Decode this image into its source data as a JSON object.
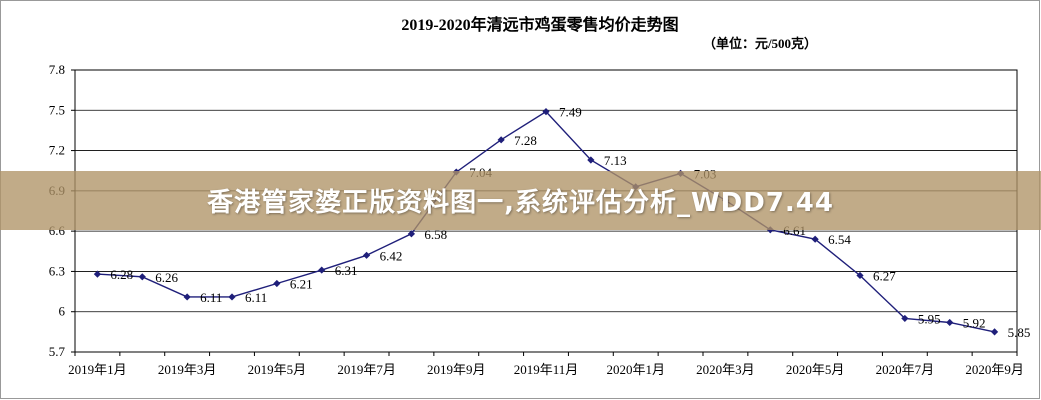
{
  "overlay": {
    "banner_text": "香港管家婆正版资料图一,系统评估分析_WDD7.44"
  },
  "chart_data": {
    "type": "line",
    "title": "2019-2020年清远市鸡蛋零售均价走势图",
    "unit_note": "（单位：元/500克）",
    "ylim": [
      5.7,
      7.8
    ],
    "yticks": [
      "7.8",
      "7.5",
      "7.2",
      "6.9",
      "6.6",
      "6.3",
      "6",
      "5.7"
    ],
    "ytick_values": [
      7.8,
      7.5,
      7.2,
      6.9,
      6.6,
      6.3,
      6.0,
      5.7
    ],
    "x_labels": [
      "2019年1月",
      "2019年3月",
      "2019年5月",
      "2019年7月",
      "2019年9月",
      "2019年11月",
      "2020年1月",
      "2020年3月",
      "2020年5月",
      "2020年7月",
      "2020年9月"
    ],
    "grid": true,
    "line_color": "#1f1f7a",
    "values": [
      6.28,
      6.26,
      6.11,
      6.11,
      6.21,
      6.31,
      6.42,
      6.58,
      7.04,
      7.28,
      7.49,
      7.13,
      6.93,
      7.03,
      6.83,
      6.61,
      6.54,
      6.27,
      5.95,
      5.92,
      5.85
    ],
    "data_labels": [
      "6.28",
      "6.26",
      "6.11",
      "6.11",
      "6.21",
      "6.31",
      "6.42",
      "6.58",
      "7.04",
      "7.28",
      "7.49",
      "7.13",
      "",
      "7.03",
      "",
      "6.61",
      "6.54",
      "6.27",
      "5.95",
      "5.92",
      "5.85"
    ]
  }
}
